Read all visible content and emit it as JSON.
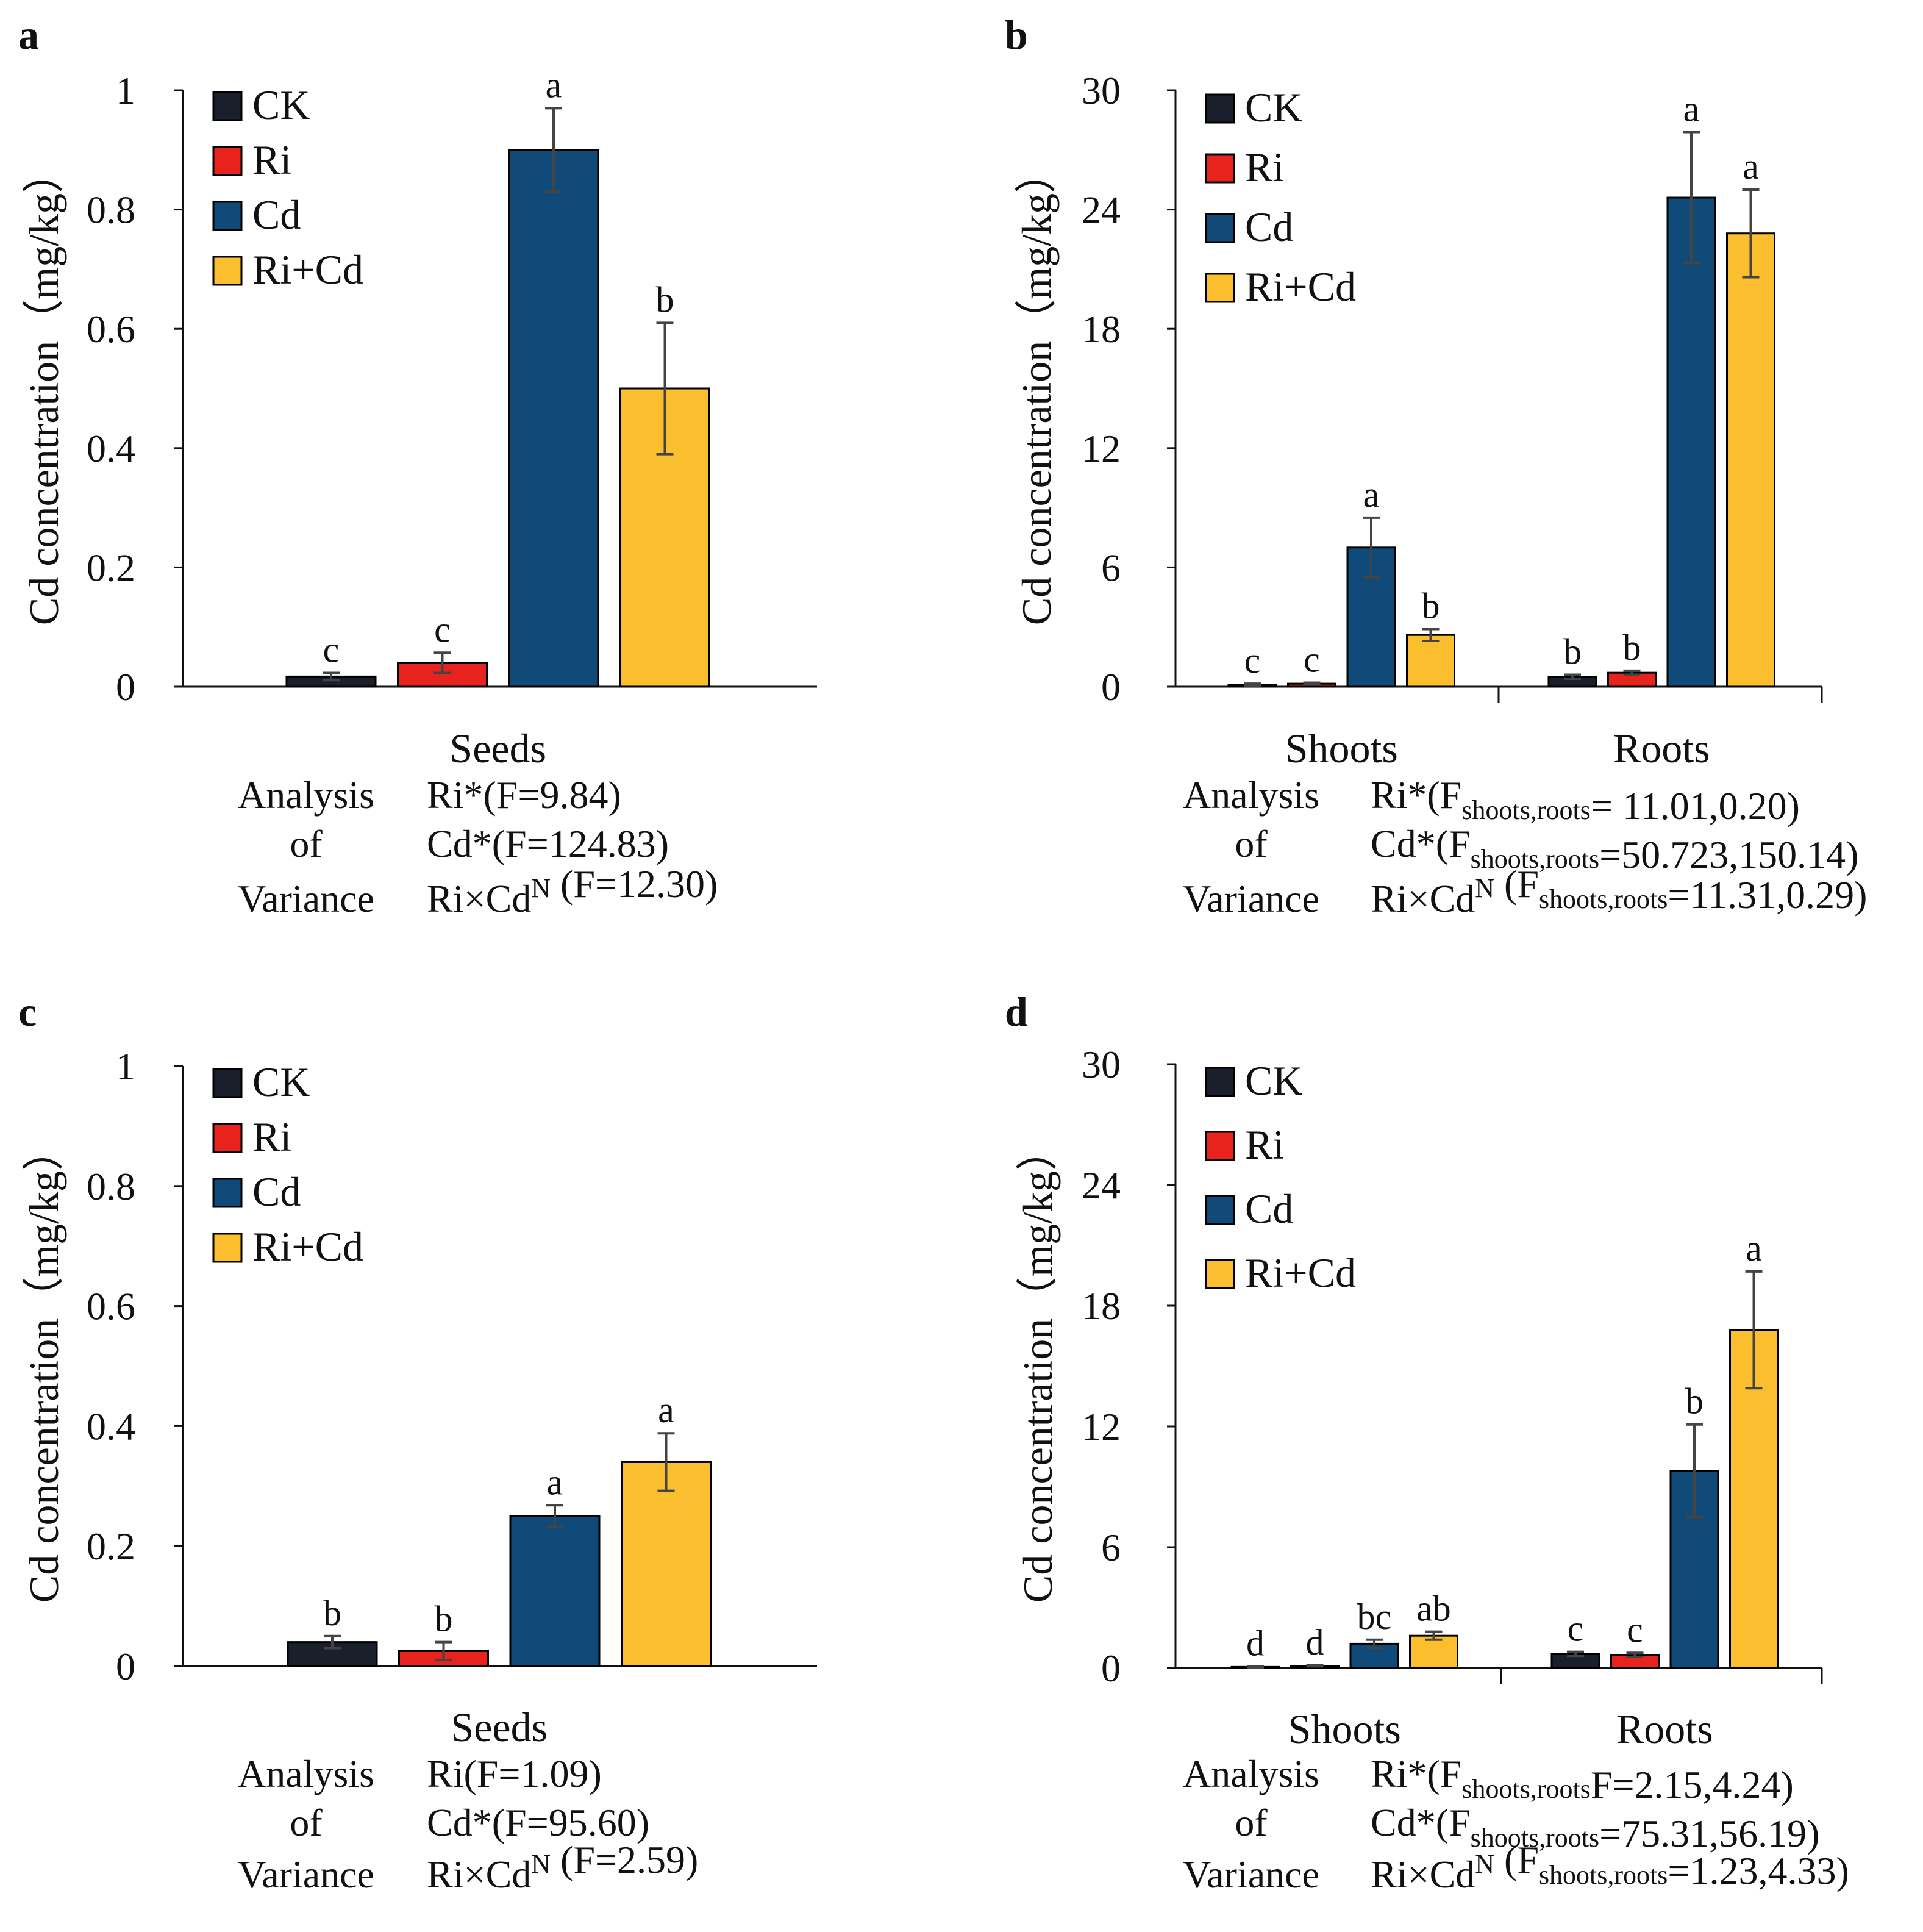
{
  "colors": {
    "CK": "#1a1f2b",
    "Ri": "#e8231d",
    "Cd": "#0f4a78",
    "Ri+Cd": "#fbbe2e",
    "axis": "#111111",
    "error": "#444444"
  },
  "legend": [
    "CK",
    "Ri",
    "Cd",
    "Ri+Cd"
  ],
  "chart_data": [
    {
      "panel": "a",
      "type": "bar",
      "ylabel": "Cd concentration（mg/kg）",
      "ylim": [
        0,
        1
      ],
      "ticks": [
        "0",
        "0.2",
        "0.4",
        "0.6",
        "0.8",
        "1"
      ],
      "tick_values": [
        0,
        0.2,
        0.4,
        0.6,
        0.8,
        1
      ],
      "categories": [
        "Seeds"
      ],
      "series": [
        {
          "name": "CK",
          "values": [
            0.017
          ],
          "errors": [
            0.006
          ],
          "letters": [
            "c"
          ]
        },
        {
          "name": "Ri",
          "values": [
            0.04
          ],
          "errors": [
            0.017
          ],
          "letters": [
            "c"
          ]
        },
        {
          "name": "Cd",
          "values": [
            0.9
          ],
          "errors": [
            0.07
          ],
          "letters": [
            "a"
          ]
        },
        {
          "name": "Ri+Cd",
          "values": [
            0.5
          ],
          "errors": [
            0.11
          ],
          "letters": [
            "b"
          ]
        }
      ],
      "anova": {
        "label": [
          "Analysis",
          "of",
          "Variance"
        ],
        "lines": [
          {
            "main": "Ri*(F=9.84)"
          },
          {
            "main": "Cd*(F=124.83)"
          },
          {
            "a": "Ri×Cd",
            "sup": "N",
            "b": " (F=12.30)"
          }
        ]
      }
    },
    {
      "panel": "b",
      "type": "bar",
      "ylabel": "Cd concentration（mg/kg）",
      "ylim": [
        0,
        30
      ],
      "ticks": [
        "0",
        "6",
        "12",
        "18",
        "24",
        "30"
      ],
      "tick_values": [
        0,
        6,
        12,
        18,
        24,
        30
      ],
      "categories": [
        "Shoots",
        "Roots"
      ],
      "series": [
        {
          "name": "CK",
          "values": [
            0.1,
            0.5
          ],
          "errors": [
            0.05,
            0.1
          ],
          "letters": [
            "c",
            "b"
          ]
        },
        {
          "name": "Ri",
          "values": [
            0.15,
            0.7
          ],
          "errors": [
            0.05,
            0.1
          ],
          "letters": [
            "c",
            "b"
          ]
        },
        {
          "name": "Cd",
          "values": [
            7.0,
            24.6
          ],
          "errors": [
            1.5,
            3.3
          ],
          "letters": [
            "a",
            "a"
          ]
        },
        {
          "name": "Ri+Cd",
          "values": [
            2.6,
            22.8
          ],
          "errors": [
            0.3,
            2.2
          ],
          "letters": [
            "b",
            "a"
          ]
        }
      ],
      "anova": {
        "label": [
          "Analysis",
          "of",
          "Variance"
        ],
        "lines": [
          {
            "a": "Ri*(F",
            "sub": "shoots,roots",
            "b": "= 11.01,0.20)"
          },
          {
            "a": "Cd*(F",
            "sub": "shoots,roots",
            "b": "=50.723,150.14)"
          },
          {
            "a": "Ri×Cd",
            "sup": "N",
            "c": " (F",
            "sub": "shoots,roots",
            "b": "=11.31,0.29)"
          }
        ]
      }
    },
    {
      "panel": "c",
      "type": "bar",
      "ylabel": "Cd concentration（mg/kg）",
      "ylim": [
        0,
        1
      ],
      "ticks": [
        "0",
        "0.2",
        "0.4",
        "0.6",
        "0.8",
        "1"
      ],
      "tick_values": [
        0,
        0.2,
        0.4,
        0.6,
        0.8,
        1
      ],
      "categories": [
        "Seeds"
      ],
      "series": [
        {
          "name": "CK",
          "values": [
            0.04
          ],
          "errors": [
            0.01
          ],
          "letters": [
            "b"
          ]
        },
        {
          "name": "Ri",
          "values": [
            0.025
          ],
          "errors": [
            0.015
          ],
          "letters": [
            "b"
          ]
        },
        {
          "name": "Cd",
          "values": [
            0.25
          ],
          "errors": [
            0.018
          ],
          "letters": [
            "a"
          ]
        },
        {
          "name": "Ri+Cd",
          "values": [
            0.34
          ],
          "errors": [
            0.048
          ],
          "letters": [
            "a"
          ]
        }
      ],
      "anova": {
        "label": [
          "Analysis",
          "of",
          "Variance"
        ],
        "lines": [
          {
            "main": "Ri(F=1.09)"
          },
          {
            "main": "Cd*(F=95.60)"
          },
          {
            "a": "Ri×Cd",
            "sup": "N",
            "b": " (F=2.59)"
          }
        ]
      }
    },
    {
      "panel": "d",
      "type": "bar",
      "ylabel": "Cd concentration（mg/kg）",
      "ylim": [
        0,
        30
      ],
      "ticks": [
        "0",
        "6",
        "12",
        "18",
        "24",
        "30"
      ],
      "tick_values": [
        0,
        6,
        12,
        18,
        24,
        30
      ],
      "categories": [
        "Shoots",
        "Roots"
      ],
      "series": [
        {
          "name": "CK",
          "values": [
            0.05,
            0.7
          ],
          "errors": [
            0.02,
            0.1
          ],
          "letters": [
            "d",
            "c"
          ]
        },
        {
          "name": "Ri",
          "values": [
            0.1,
            0.65
          ],
          "errors": [
            0.02,
            0.1
          ],
          "letters": [
            "d",
            "c"
          ]
        },
        {
          "name": "Cd",
          "values": [
            1.2,
            9.8
          ],
          "errors": [
            0.2,
            2.3
          ],
          "letters": [
            "bc",
            "b"
          ]
        },
        {
          "name": "Ri+Cd",
          "values": [
            1.6,
            16.8
          ],
          "errors": [
            0.2,
            2.9
          ],
          "letters": [
            "ab",
            "a"
          ]
        }
      ],
      "anova": {
        "label": [
          "Analysis",
          "of",
          "Variance"
        ],
        "lines": [
          {
            "a": "Ri*(F",
            "sub": "shoots,roots",
            "b": "F=2.15,4.24)"
          },
          {
            "a": " Cd*(F",
            "sub": "shoots,roots",
            "b": "=75.31,56.19)"
          },
          {
            "a": "Ri×Cd",
            "sup": "N",
            "c": " (F",
            "sub": "shoots,roots",
            "b": "=1.23,4.33)"
          }
        ]
      }
    }
  ]
}
